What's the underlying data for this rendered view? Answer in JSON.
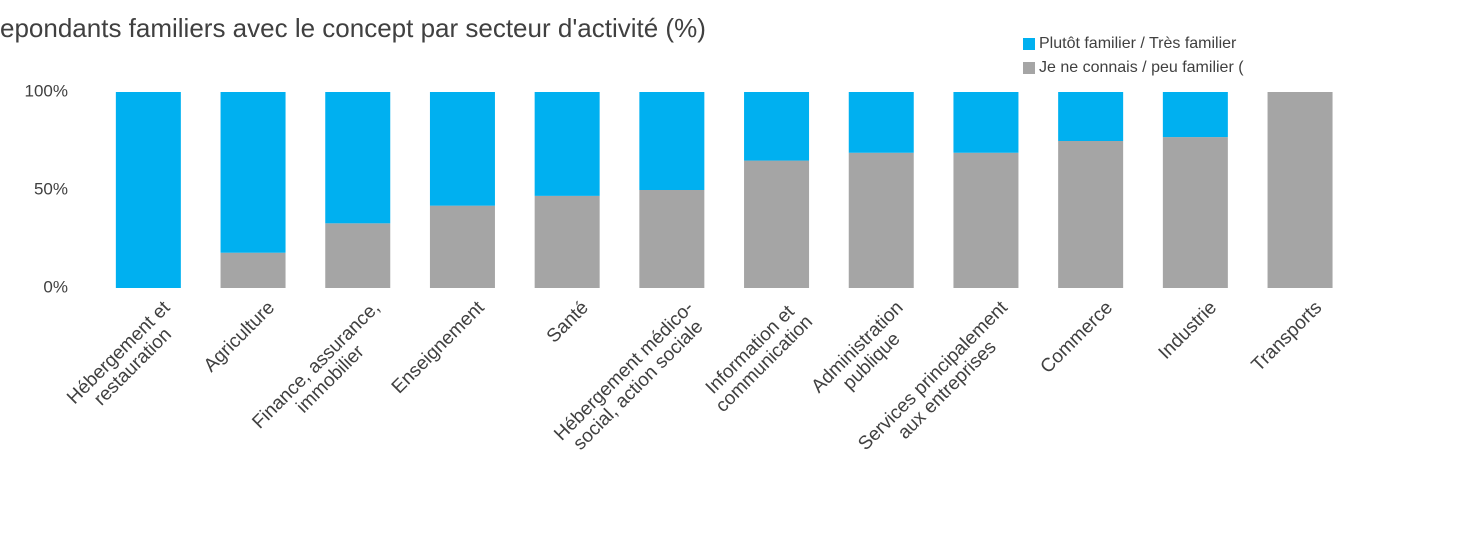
{
  "chart_data": {
    "type": "stacked-bar",
    "title": "epondants familiers avec le concept par secteur d'activité (%)",
    "categories": [
      "Hébergement et\nrestauration",
      "Agriculture",
      "Finance, assurance,\nimmobilier",
      "Enseignement",
      "Santé",
      "Hébergement médico-\nsocial, action sociale",
      "Information et\ncommunication",
      "Administration\npublique",
      "Services principalement\naux entreprises",
      "Commerce",
      "Industrie",
      "Transports"
    ],
    "series": [
      {
        "name": "Plutôt familier / Très familier",
        "color": "#00b0f0",
        "values": [
          100,
          82,
          67,
          58,
          53,
          50,
          35,
          31,
          31,
          25,
          23,
          0
        ]
      },
      {
        "name": "Je ne connais / peu familier (",
        "color": "#a5a5a5",
        "values": [
          0,
          18,
          33,
          42,
          47,
          50,
          65,
          69,
          69,
          75,
          77,
          100
        ]
      }
    ],
    "ylim": [
      0,
      100
    ],
    "yticks": [
      {
        "value": 0,
        "label": "0%"
      },
      {
        "value": 50,
        "label": "50%"
      },
      {
        "value": 100,
        "label": "100%"
      }
    ],
    "grid": false
  }
}
